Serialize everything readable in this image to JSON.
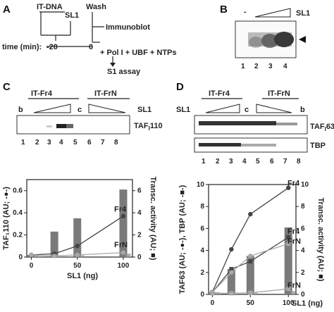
{
  "panels": {
    "A": {
      "letter": "A",
      "it_dna": "IT-DNA",
      "sl1": "SL1",
      "wash": "Wash",
      "immunoblot": "Immunoblot",
      "time_label": "time (min):",
      "t_minus20": "-20",
      "t_zero": "0",
      "additions": "+ Pol I + UBF + NTPs",
      "s1_assay": "S1 assay"
    },
    "B": {
      "letter": "B",
      "minus": "-",
      "sl1": "SL1",
      "lanes": [
        "1",
        "2",
        "3",
        "4"
      ]
    },
    "C": {
      "letter": "C",
      "group1": "IT-Fr4",
      "group2": "IT-FrN",
      "lane_b": "b",
      "lane_c": "c",
      "sl1": "SL1",
      "band_label_main": "TAF",
      "band_label_sub": "I",
      "band_label_num": "110",
      "lanes": [
        "1",
        "2",
        "3",
        "4",
        "5",
        "6",
        "7",
        "8"
      ]
    },
    "D": {
      "letter": "D",
      "group1": "IT-Fr4",
      "group2": "IT-FrN",
      "sl1_left": "SL1",
      "lane_c": "c",
      "lane_b": "b",
      "band1_main": "TAF",
      "band1_sub": "I",
      "band1_num": "63",
      "band2": "TBP",
      "lanes": [
        "1",
        "2",
        "3",
        "4",
        "5",
        "6",
        "7",
        "8"
      ]
    }
  },
  "chart_data": [
    {
      "type": "bar+line",
      "panel": "C",
      "x": [
        0,
        25,
        50,
        100
      ],
      "xticks": [
        "0",
        "50",
        "100"
      ],
      "xtick_values": [
        0,
        50,
        100
      ],
      "xlabel": "SL1 (ng)",
      "ylabel_left": "TAF₁110 (AU; -●-)",
      "ylabel_right": "Transc. activity (AU; ■)",
      "ylim_left": [
        0,
        0.7
      ],
      "yticks_left": [
        "0",
        "0.2",
        "0.4",
        "0.6"
      ],
      "ylim_right": [
        0,
        7
      ],
      "yticks_right": [
        "0",
        "2",
        "4",
        "6"
      ],
      "series": [
        {
          "name": "Fr4",
          "kind": "bar",
          "axis": "right",
          "values": [
            0.2,
            2.3,
            3.5,
            6.1
          ],
          "color": "#7a7a7a"
        },
        {
          "name": "FrN",
          "kind": "bar",
          "axis": "right",
          "values": [
            0.2,
            0.1,
            0.15,
            0.3
          ],
          "color": "#9a9a9a"
        },
        {
          "name": "Fr4",
          "kind": "line",
          "axis": "left",
          "values": [
            0.02,
            0.03,
            0.1,
            0.37
          ],
          "color": "#444444"
        },
        {
          "name": "FrN",
          "kind": "line",
          "axis": "left",
          "values": [
            0.02,
            0.01,
            0.02,
            0.04
          ],
          "color": "#a8a8a8"
        }
      ],
      "labels": [
        "Fr4",
        "FrN"
      ]
    },
    {
      "type": "bar+line",
      "panel": "D",
      "x": [
        0,
        25,
        50,
        100
      ],
      "xticks": [
        "0",
        "50",
        "100"
      ],
      "xtick_values": [
        0,
        50,
        100
      ],
      "xlabel": "SL1 (ng)",
      "ylabel_left": "TAF⁡63 (AU; -●-), TBP (AU; -■-)",
      "ylabel_right": "Transc. activity (AU; ■)",
      "ylim_left": [
        0,
        10
      ],
      "yticks_left": [
        "0",
        "2",
        "4",
        "6",
        "8",
        "10"
      ],
      "ylim_right": [
        0,
        10
      ],
      "yticks_right": [
        "0",
        "2",
        "4",
        "6",
        "8",
        "10"
      ],
      "series": [
        {
          "name": "Fr4",
          "kind": "bar",
          "axis": "right",
          "values": [
            0.2,
            2.3,
            3.5,
            6.1
          ],
          "color": "#7a7a7a"
        },
        {
          "name": "FrN",
          "kind": "bar",
          "axis": "right",
          "values": [
            0.2,
            0.1,
            0.15,
            0.3
          ],
          "color": "#9a9a9a"
        },
        {
          "name": "Fr4",
          "kind": "line",
          "axis": "left",
          "marker": "circle",
          "values": [
            0.2,
            4.1,
            7.3,
            9.7
          ],
          "color": "#444444"
        },
        {
          "name": "Fr4",
          "kind": "line",
          "axis": "left",
          "marker": "square",
          "values": [
            0.2,
            2.3,
            3.0,
            5.2
          ],
          "color": "#444444"
        },
        {
          "name": "FrN",
          "kind": "line",
          "axis": "left",
          "marker": "circle",
          "values": [
            0.2,
            2.0,
            3.5,
            4.6
          ],
          "color": "#a8a8a8"
        },
        {
          "name": "FrN",
          "kind": "line",
          "axis": "left",
          "marker": "square",
          "values": [
            0.1,
            0.1,
            0.15,
            0.5
          ],
          "color": "#a8a8a8"
        }
      ],
      "labels": [
        "Fr4",
        "Fr4",
        "FrN",
        "FrN"
      ]
    }
  ]
}
